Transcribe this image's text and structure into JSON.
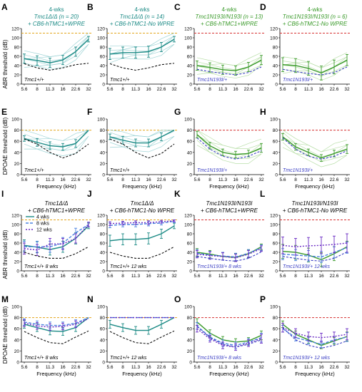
{
  "figure": {
    "shared": {
      "xlabel": "Frequency (kHz)",
      "ylabel_abr": "ABR threshold (dB)",
      "ylabel_dpoae": "DPOAE threshold (dB)",
      "x_ticks": [
        "5.6",
        "8",
        "11.3",
        "16",
        "22.6",
        "32"
      ],
      "abr_ticks": [
        "0",
        "20",
        "40",
        "60",
        "80",
        "100",
        "120"
      ],
      "dpoae_ticks": [
        "0",
        "20",
        "40",
        "60",
        "80",
        "100"
      ],
      "colors": {
        "wpre": "#1b8a85",
        "nowpre": "#1b8a85",
        "ko_spaghetti": "#9fd4d6",
        "n193i_green": "#3a9a2a",
        "n193i_spaghetti": "#b9dfa9",
        "het_black": "#111111",
        "het_blue": "#3b3fc4",
        "ceiling_orange": "#e3a51b",
        "ceiling_red": "#d63030",
        "wk4": "#1b8a85",
        "wk8": "#4a82e0",
        "wk12": "#6a2bc4"
      }
    },
    "legend_weeks": [
      "4 wks",
      "8 wks",
      "12 wks"
    ]
  },
  "chart_data": [
    {
      "panel": "A",
      "type": "line",
      "title_lines": [
        "4-wks",
        "Tmc1Δ/Δ (n = 20)",
        "+ CB6-hTMC1+WPRE"
      ],
      "annotation": "Tmc1+/+",
      "x": [
        5.6,
        8,
        11.3,
        16,
        22.6,
        32
      ],
      "ylim": [
        0,
        120
      ],
      "series": [
        {
          "kind": "mean",
          "values": [
            55,
            51,
            46,
            52,
            70,
            97
          ],
          "err": [
            10,
            10,
            10,
            10,
            10,
            6
          ]
        },
        {
          "kind": "control",
          "values": [
            44,
            35,
            30,
            35,
            42,
            45
          ]
        }
      ],
      "ceiling": 110
    },
    {
      "panel": "B",
      "type": "line",
      "title_lines": [
        "4-wks",
        "Tmc1Δ/Δ (n = 14)",
        "+ CB6-hTMC1-No WPRE"
      ],
      "annotation": "Tmc1+/+",
      "x": [
        5.6,
        8,
        11.3,
        16,
        22.6,
        32
      ],
      "ylim": [
        0,
        120
      ],
      "series": [
        {
          "kind": "mean",
          "values": [
            65,
            68,
            68,
            70,
            80,
            97
          ],
          "err": [
            12,
            12,
            12,
            12,
            10,
            6
          ]
        },
        {
          "kind": "control",
          "values": [
            44,
            35,
            30,
            35,
            42,
            45
          ]
        }
      ],
      "ceiling": 110
    },
    {
      "panel": "C",
      "type": "line",
      "title_lines": [
        "4-wks",
        "Tmc1N193I/N193I (n = 13)",
        "+ CB6-hTMC1+WPRE"
      ],
      "annotation": "Tmc1N193I/+",
      "x": [
        5.6,
        8,
        11.3,
        16,
        22.6,
        32
      ],
      "ylim": [
        0,
        120
      ],
      "series": [
        {
          "kind": "mean",
          "values": [
            40,
            36,
            31,
            29,
            37,
            52
          ],
          "err": [
            10,
            10,
            10,
            10,
            10,
            10
          ]
        },
        {
          "kind": "control",
          "values": [
            32,
            27,
            23,
            20,
            25,
            37
          ]
        }
      ],
      "ceiling": 110
    },
    {
      "panel": "D",
      "type": "line",
      "title_lines": [
        "4-wks",
        "Tmc1N193I/N193I (n = 6)",
        "+ CB6-hTMC1-No WPRE"
      ],
      "annotation": "Tmc1N193I/+",
      "x": [
        5.6,
        8,
        11.3,
        16,
        22.6,
        32
      ],
      "ylim": [
        0,
        120
      ],
      "series": [
        {
          "kind": "mean",
          "values": [
            42,
            40,
            34,
            24,
            37,
            52
          ],
          "err": [
            15,
            15,
            15,
            15,
            15,
            12
          ]
        },
        {
          "kind": "control",
          "values": [
            32,
            27,
            23,
            20,
            25,
            37
          ]
        }
      ],
      "ceiling": 110
    },
    {
      "panel": "E",
      "type": "line",
      "annotation": "Tmc1+/+",
      "x": [
        5.6,
        8,
        11.3,
        16,
        22.6,
        32
      ],
      "ylim": [
        0,
        100
      ],
      "series": [
        {
          "kind": "mean",
          "values": [
            65,
            58,
            52,
            50,
            56,
            80
          ],
          "err": [
            5,
            7,
            7,
            6,
            7,
            0
          ]
        },
        {
          "kind": "control",
          "values": [
            64,
            55,
            40,
            30,
            38,
            55
          ]
        }
      ],
      "ceiling": 80
    },
    {
      "panel": "F",
      "type": "line",
      "annotation": "Tmc1+/+",
      "x": [
        5.6,
        8,
        11.3,
        16,
        22.6,
        32
      ],
      "ylim": [
        0,
        100
      ],
      "series": [
        {
          "kind": "mean",
          "values": [
            68,
            62,
            57,
            57,
            68,
            80
          ],
          "err": [
            5,
            7,
            7,
            7,
            7,
            0
          ]
        },
        {
          "kind": "control",
          "values": [
            64,
            55,
            40,
            30,
            38,
            55
          ]
        }
      ],
      "ceiling": 80
    },
    {
      "panel": "G",
      "type": "line",
      "annotation": "Tmc1N193I/+",
      "x": [
        5.6,
        8,
        11.3,
        16,
        22.6,
        32
      ],
      "ylim": [
        0,
        100
      ],
      "series": [
        {
          "kind": "mean",
          "values": [
            72,
            52,
            40,
            36,
            38,
            48
          ],
          "err": [
            6,
            6,
            6,
            6,
            6,
            8
          ]
        },
        {
          "kind": "control",
          "values": [
            66,
            46,
            33,
            28,
            33,
            43
          ]
        }
      ],
      "ceiling": 80
    },
    {
      "panel": "H",
      "type": "line",
      "annotation": "Tmc1N193I/+",
      "x": [
        5.6,
        8,
        11.3,
        16,
        22.6,
        32
      ],
      "ylim": [
        0,
        100
      ],
      "series": [
        {
          "kind": "mean",
          "values": [
            68,
            50,
            40,
            30,
            38,
            46
          ],
          "err": [
            6,
            6,
            6,
            6,
            6,
            8
          ]
        },
        {
          "kind": "control",
          "values": [
            66,
            46,
            33,
            28,
            33,
            43
          ]
        }
      ],
      "ceiling": 80
    },
    {
      "panel": "I",
      "type": "line",
      "title_lines": [
        "Tmc1Δ/Δ",
        "+ CB6-hTMC1+WPRE"
      ],
      "annotation": "Tmc1+/+ 8 wks",
      "x": [
        5.6,
        8,
        11.3,
        16,
        22.6,
        32
      ],
      "ylim": [
        0,
        120
      ],
      "legend": true,
      "series": [
        {
          "kind": "wk4",
          "values": [
            55,
            51,
            46,
            52,
            70,
            97
          ],
          "err": [
            12,
            12,
            12,
            12,
            12,
            6
          ]
        },
        {
          "kind": "wk8",
          "values": [
            52,
            52,
            52,
            60,
            82,
            100
          ],
          "err": [
            12,
            12,
            12,
            12,
            10,
            5
          ]
        },
        {
          "kind": "wk12",
          "values": [
            48,
            45,
            58,
            58,
            70,
            100
          ],
          "err": [
            12,
            12,
            12,
            12,
            10,
            5
          ]
        },
        {
          "kind": "control",
          "values": [
            40,
            32,
            27,
            27,
            37,
            52
          ]
        }
      ],
      "ceiling": 110
    },
    {
      "panel": "J",
      "type": "line",
      "title_lines": [
        "Tmc1Δ/Δ",
        "+ CB6-hTMC1-No WPRE"
      ],
      "annotation": "Tmc1+/+ 12 wks",
      "x": [
        5.6,
        8,
        11.3,
        16,
        22.6,
        32
      ],
      "ylim": [
        0,
        120
      ],
      "series": [
        {
          "kind": "wk4",
          "values": [
            65,
            68,
            68,
            70,
            80,
            97
          ],
          "err": [
            12,
            12,
            12,
            12,
            10,
            6
          ]
        },
        {
          "kind": "wk8",
          "values": [
            98,
            100,
            100,
            102,
            103,
            107
          ],
          "err": [
            5,
            5,
            5,
            5,
            4,
            3
          ]
        },
        {
          "kind": "wk12",
          "values": [
            102,
            103,
            104,
            104,
            106,
            108
          ],
          "err": [
            4,
            4,
            4,
            4,
            3,
            2
          ]
        },
        {
          "kind": "control",
          "values": [
            40,
            32,
            27,
            27,
            37,
            52
          ]
        }
      ],
      "ceiling": 110
    },
    {
      "panel": "K",
      "type": "line",
      "title_lines": [
        "Tmc1N193I/N193I",
        "+ CB6-hTMC1+WPRE"
      ],
      "annotation": "Tmc1N193I/+ 8 wks",
      "x": [
        5.6,
        8,
        11.3,
        16,
        22.6,
        32
      ],
      "ylim": [
        0,
        120
      ],
      "series": [
        {
          "kind": "wk4",
          "values": [
            40,
            36,
            31,
            29,
            37,
            52
          ],
          "err": [
            8,
            8,
            8,
            8,
            8,
            6
          ]
        },
        {
          "kind": "wk8",
          "values": [
            38,
            34,
            32,
            30,
            38,
            50
          ],
          "err": [
            8,
            8,
            8,
            8,
            8,
            6
          ]
        },
        {
          "kind": "wk12",
          "values": [
            36,
            33,
            31,
            28,
            36,
            48
          ],
          "err": [
            8,
            8,
            8,
            8,
            8,
            6
          ]
        },
        {
          "kind": "control",
          "values": [
            31,
            27,
            23,
            21,
            27,
            41
          ]
        }
      ],
      "ceiling": 110
    },
    {
      "panel": "L",
      "type": "line",
      "title_lines": [
        "Tmc1N193I/N193I",
        "+ CB6-hTMC1-No WPRE"
      ],
      "annotation": "Tmc1N193I/+ 12 wks",
      "x": [
        5.6,
        8,
        11.3,
        16,
        22.6,
        32
      ],
      "ylim": [
        0,
        120
      ],
      "series": [
        {
          "kind": "wk4",
          "values": [
            42,
            40,
            34,
            24,
            37,
            52
          ],
          "err": [
            15,
            15,
            15,
            15,
            15,
            12
          ]
        },
        {
          "kind": "wk8",
          "values": [
            36,
            34,
            32,
            30,
            40,
            50
          ],
          "err": [
            12,
            12,
            12,
            12,
            12,
            12
          ]
        },
        {
          "kind": "wk12",
          "values": [
            55,
            52,
            54,
            55,
            57,
            60
          ],
          "err": [
            18,
            18,
            18,
            18,
            18,
            20
          ]
        },
        {
          "kind": "control",
          "values": [
            31,
            27,
            23,
            21,
            27,
            41
          ]
        }
      ],
      "ceiling": 110
    },
    {
      "panel": "M",
      "type": "line",
      "annotation": "Tmc1+/+ 8 wks",
      "x": [
        5.6,
        8,
        11.3,
        16,
        22.6,
        32
      ],
      "ylim": [
        0,
        100
      ],
      "series": [
        {
          "kind": "wk4",
          "values": [
            68,
            62,
            56,
            55,
            62,
            80
          ],
          "err": [
            7,
            7,
            7,
            7,
            7,
            0
          ]
        },
        {
          "kind": "wk8",
          "values": [
            72,
            68,
            66,
            66,
            70,
            80
          ],
          "err": [
            6,
            6,
            6,
            6,
            6,
            0
          ]
        },
        {
          "kind": "wk12",
          "values": [
            70,
            65,
            63,
            64,
            68,
            78
          ],
          "err": [
            6,
            6,
            6,
            6,
            6,
            0
          ]
        },
        {
          "kind": "control",
          "values": [
            55,
            44,
            35,
            33,
            45,
            56
          ]
        }
      ],
      "ceiling": 80
    },
    {
      "panel": "N",
      "type": "line",
      "annotation": "Tmc1+/+ 12 wks",
      "x": [
        5.6,
        8,
        11.3,
        16,
        22.6,
        32
      ],
      "ylim": [
        0,
        100
      ],
      "series": [
        {
          "kind": "wk4",
          "values": [
            68,
            62,
            57,
            57,
            68,
            80
          ],
          "err": [
            7,
            7,
            7,
            7,
            7,
            0
          ]
        },
        {
          "kind": "wk8",
          "values": [
            80,
            80,
            80,
            80,
            80,
            80
          ],
          "err": [
            0,
            0,
            0,
            0,
            0,
            0
          ]
        },
        {
          "kind": "wk12",
          "values": [
            80,
            80,
            80,
            80,
            80,
            80
          ],
          "err": [
            0,
            0,
            0,
            0,
            0,
            0
          ]
        },
        {
          "kind": "control",
          "values": [
            55,
            44,
            35,
            33,
            45,
            56
          ]
        }
      ],
      "ceiling": 80
    },
    {
      "panel": "O",
      "type": "line",
      "annotation": "Tmc1N193I/+ 8 wks",
      "x": [
        5.6,
        8,
        11.3,
        16,
        22.6,
        32
      ],
      "ylim": [
        0,
        100
      ],
      "series": [
        {
          "kind": "wk4",
          "values": [
            72,
            52,
            40,
            36,
            38,
            48
          ],
          "err": [
            6,
            6,
            6,
            6,
            6,
            8
          ]
        },
        {
          "kind": "wk8",
          "values": [
            65,
            45,
            34,
            30,
            36,
            44
          ],
          "err": [
            6,
            6,
            6,
            6,
            6,
            8
          ]
        },
        {
          "kind": "wk12",
          "values": [
            60,
            42,
            30,
            27,
            34,
            42
          ],
          "err": [
            6,
            6,
            6,
            6,
            6,
            8
          ]
        },
        {
          "kind": "control",
          "values": [
            64,
            44,
            32,
            27,
            32,
            40
          ]
        }
      ],
      "ceiling": 80
    },
    {
      "panel": "P",
      "type": "line",
      "annotation": "Tmc1N193I/+ 12 wks",
      "x": [
        5.6,
        8,
        11.3,
        16,
        22.6,
        32
      ],
      "ylim": [
        0,
        100
      ],
      "series": [
        {
          "kind": "wk4",
          "values": [
            68,
            50,
            40,
            30,
            38,
            46
          ],
          "err": [
            6,
            6,
            6,
            6,
            6,
            8
          ]
        },
        {
          "kind": "wk8",
          "values": [
            60,
            44,
            38,
            32,
            40,
            45
          ],
          "err": [
            6,
            6,
            6,
            6,
            6,
            8
          ]
        },
        {
          "kind": "wk12",
          "values": [
            62,
            52,
            46,
            44,
            46,
            50
          ],
          "err": [
            8,
            8,
            8,
            8,
            8,
            10
          ]
        },
        {
          "kind": "control",
          "values": [
            62,
            40,
            30,
            25,
            30,
            38
          ]
        }
      ],
      "ceiling": 80
    }
  ]
}
